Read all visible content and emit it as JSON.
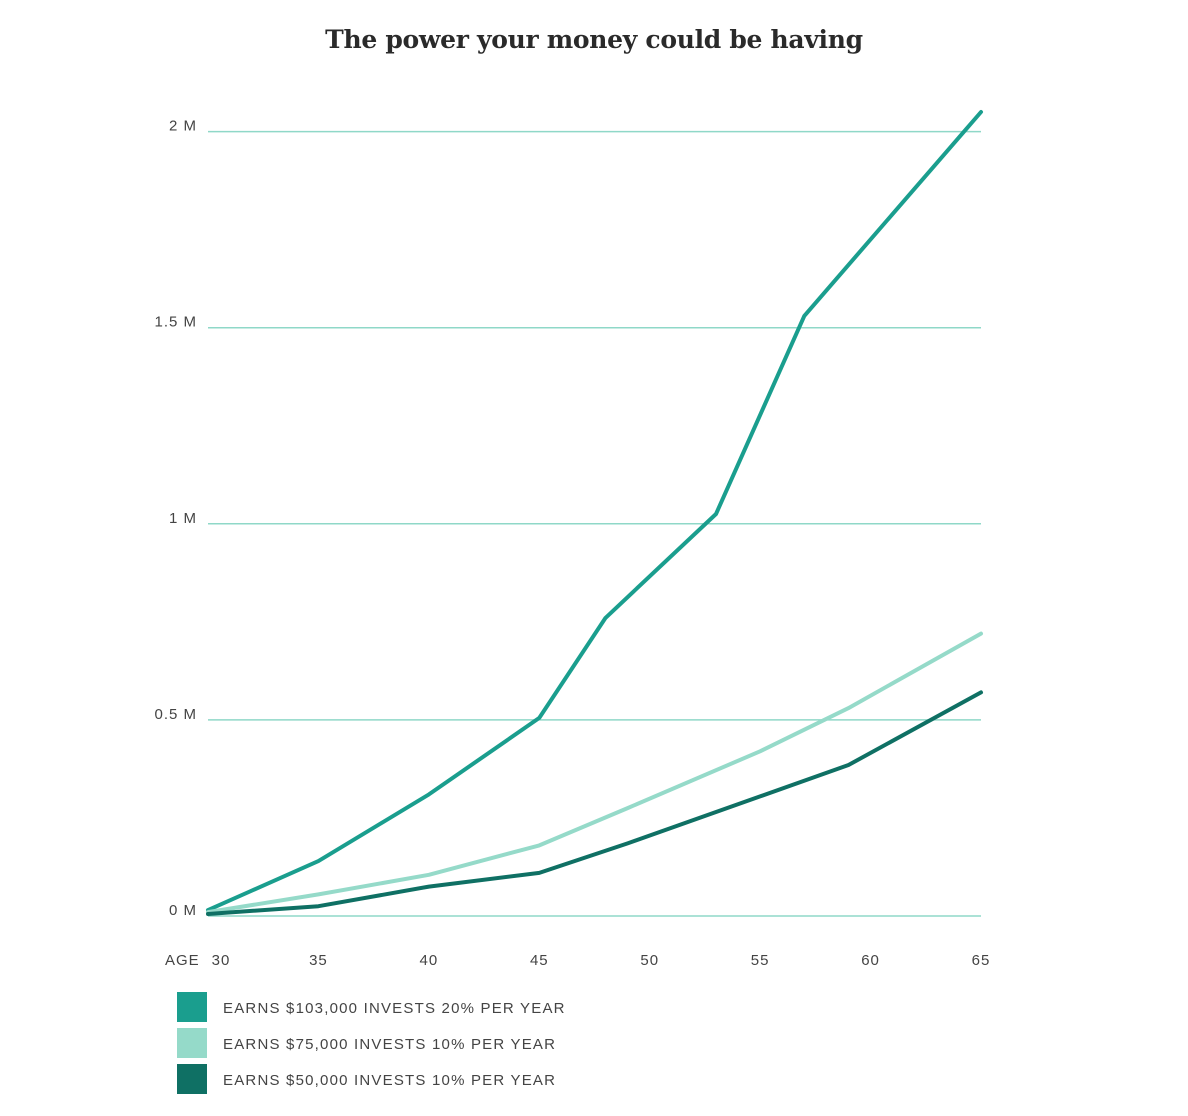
{
  "chart_data": {
    "type": "line",
    "title": "The power your money could be having",
    "xlabel": "AGE",
    "x_ticks": [
      30,
      35,
      40,
      45,
      50,
      55,
      60,
      65
    ],
    "y_ticks": [
      {
        "value": 0,
        "label": "0 M"
      },
      {
        "value": 0.5,
        "label": "0.5 M"
      },
      {
        "value": 1,
        "label": "1 M"
      },
      {
        "value": 1.5,
        "label": "1.5 M"
      },
      {
        "value": 2,
        "label": "2 M"
      }
    ],
    "xlim": [
      30,
      65
    ],
    "ylim": [
      0,
      2.05
    ],
    "grid": true,
    "legend_position": "bottom-left",
    "series": [
      {
        "name": "EARNS $103,000 INVESTS 20% PER YEAR",
        "color": "#1a9e8e",
        "points": [
          [
            30,
            0.015
          ],
          [
            35,
            0.14
          ],
          [
            40,
            0.31
          ],
          [
            45,
            0.505
          ],
          [
            48,
            0.76
          ],
          [
            53,
            1.025
          ],
          [
            57,
            1.53
          ],
          [
            65,
            2.05
          ]
        ]
      },
      {
        "name": "EARNS $75,000 INVESTS 10% PER YEAR",
        "color": "#95dac9",
        "points": [
          [
            30,
            0.01
          ],
          [
            35,
            0.055
          ],
          [
            40,
            0.105
          ],
          [
            45,
            0.18
          ],
          [
            49,
            0.275
          ],
          [
            55,
            0.42
          ],
          [
            59,
            0.53
          ],
          [
            65,
            0.72
          ]
        ]
      },
      {
        "name": "EARNS $50,000 INVESTS 10% PER YEAR",
        "color": "#0f7064",
        "points": [
          [
            30,
            0.005
          ],
          [
            35,
            0.025
          ],
          [
            40,
            0.075
          ],
          [
            45,
            0.11
          ],
          [
            49,
            0.185
          ],
          [
            55,
            0.305
          ],
          [
            59,
            0.385
          ],
          [
            65,
            0.57
          ]
        ]
      }
    ]
  }
}
